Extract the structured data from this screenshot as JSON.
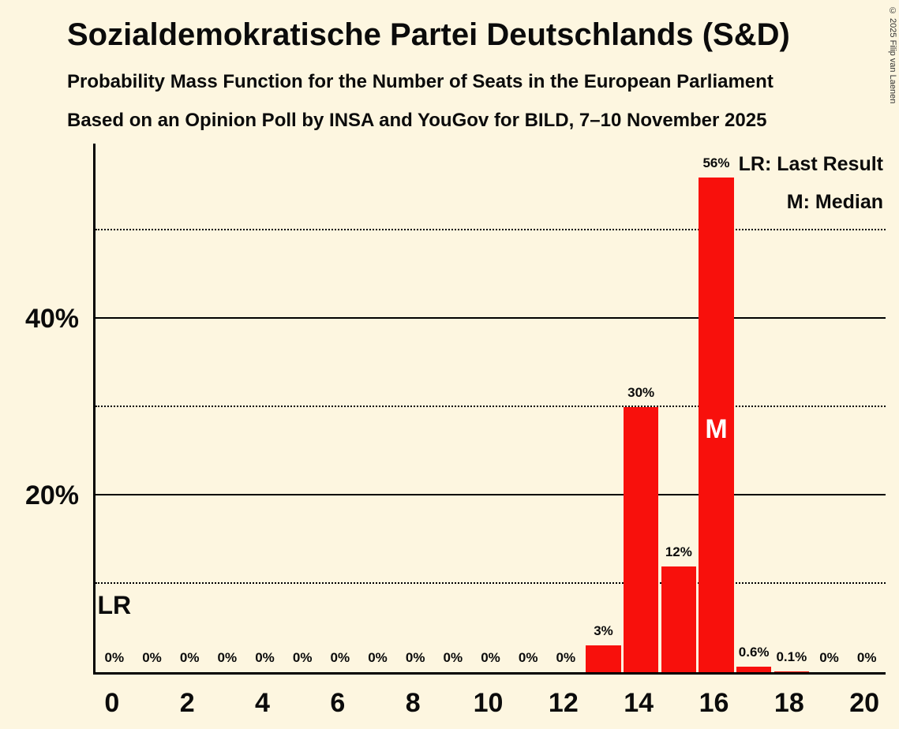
{
  "title": "Sozialdemokratische Partei Deutschlands (S&D)",
  "subtitle1": "Probability Mass Function for the Number of Seats in the European Parliament",
  "subtitle2": "Based on an Opinion Poll by INSA and YouGov for BILD, 7–10 November 2025",
  "copyright": "© 2025 Filip van Laenen",
  "legend": {
    "lr": "LR: Last Result",
    "m": "M: Median"
  },
  "colors": {
    "background": "#FDF6E0",
    "bar": "#F8100C",
    "text": "#000000"
  },
  "chart_data": {
    "type": "bar",
    "title": "Sozialdemokratische Partei Deutschlands (S&D)",
    "xlabel": "",
    "ylabel": "",
    "x": [
      0,
      1,
      2,
      3,
      4,
      5,
      6,
      7,
      8,
      9,
      10,
      11,
      12,
      13,
      14,
      15,
      16,
      17,
      18,
      19,
      20
    ],
    "values": [
      0,
      0,
      0,
      0,
      0,
      0,
      0,
      0,
      0,
      0,
      0,
      0,
      0,
      3,
      30,
      12,
      56,
      0.6,
      0.1,
      0,
      0
    ],
    "value_labels": [
      "0%",
      "0%",
      "0%",
      "0%",
      "0%",
      "0%",
      "0%",
      "0%",
      "0%",
      "0%",
      "0%",
      "0%",
      "0%",
      "3%",
      "30%",
      "12%",
      "56%",
      "0.6%",
      "0.1%",
      "0%",
      "0%"
    ],
    "x_ticks": [
      {
        "value": 0,
        "label": "0"
      },
      {
        "value": 2,
        "label": "2"
      },
      {
        "value": 4,
        "label": "4"
      },
      {
        "value": 6,
        "label": "6"
      },
      {
        "value": 8,
        "label": "8"
      },
      {
        "value": 10,
        "label": "10"
      },
      {
        "value": 12,
        "label": "12"
      },
      {
        "value": 14,
        "label": "14"
      },
      {
        "value": 16,
        "label": "16"
      },
      {
        "value": 18,
        "label": "18"
      },
      {
        "value": 20,
        "label": "20"
      }
    ],
    "y_ticks": [
      {
        "value": 20,
        "label": "20%"
      },
      {
        "value": 40,
        "label": "40%"
      }
    ],
    "ylim": [
      0,
      60
    ],
    "solid_gridlines": [
      20,
      40
    ],
    "dotted_gridlines": [
      10,
      30,
      50
    ],
    "median_seat": 16,
    "median_marker": "M",
    "lr_seat": 0,
    "lr_marker": "LR",
    "legend_position": "top-right",
    "grid": "horizontal"
  }
}
